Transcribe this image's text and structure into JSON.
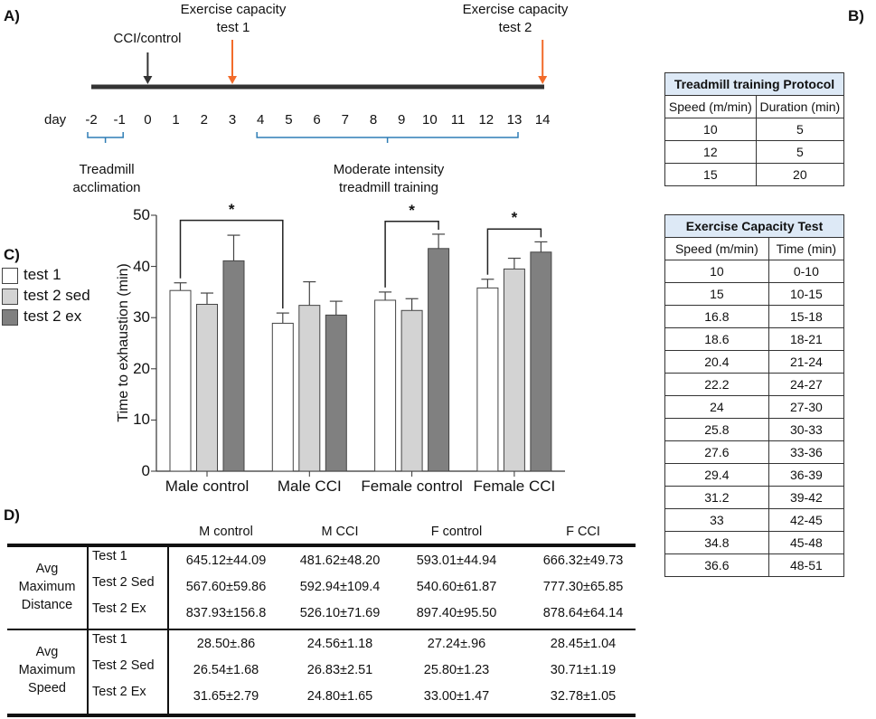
{
  "panels": {
    "a": "A)",
    "b": "B)",
    "c": "C)",
    "d": "D)"
  },
  "timeline": {
    "day_label": "day",
    "days": [
      "-2",
      "-1",
      "0",
      "1",
      "2",
      "3",
      "4",
      "5",
      "6",
      "7",
      "8",
      "9",
      "10",
      "11",
      "12",
      "13",
      "14"
    ],
    "cci_label": "CCI/control",
    "test1_label": [
      "Exercise capacity",
      "test 1"
    ],
    "test2_label": [
      "Exercise capacity",
      "test 2"
    ],
    "acclimation_label": [
      "Treadmill",
      "acclimation"
    ],
    "training_label": [
      "Moderate intensity",
      "treadmill training"
    ],
    "arrow_color": "#f26b2a"
  },
  "protocol_table": {
    "title": "Treadmill training Protocol",
    "headers": [
      "Speed (m/min)",
      "Duration (min)"
    ],
    "rows": [
      [
        "10",
        "5"
      ],
      [
        "12",
        "5"
      ],
      [
        "15",
        "20"
      ]
    ]
  },
  "capacity_table": {
    "title": "Exercise Capacity Test",
    "headers": [
      "Speed (m/min)",
      "Time (min)"
    ],
    "rows": [
      [
        "10",
        "0-10"
      ],
      [
        "15",
        "10-15"
      ],
      [
        "16.8",
        "15-18"
      ],
      [
        "18.6",
        "18-21"
      ],
      [
        "20.4",
        "21-24"
      ],
      [
        "22.2",
        "24-27"
      ],
      [
        "24",
        "27-30"
      ],
      [
        "25.8",
        "30-33"
      ],
      [
        "27.6",
        "33-36"
      ],
      [
        "29.4",
        "36-39"
      ],
      [
        "31.2",
        "39-42"
      ],
      [
        "33",
        "42-45"
      ],
      [
        "34.8",
        "45-48"
      ],
      [
        "36.6",
        "48-51"
      ]
    ]
  },
  "chart_data": {
    "type": "bar",
    "ylabel": "Time to exhaustion  (min)",
    "xlabel": "",
    "ylim": [
      0,
      50
    ],
    "yticks": [
      "0",
      "10",
      "20",
      "30",
      "40",
      "50"
    ],
    "categories": [
      "Male control",
      "Male CCI",
      "Female control",
      "Female CCI"
    ],
    "legend_position": "left",
    "series": [
      {
        "name": "test 1",
        "color": "#ffffff",
        "values": [
          35.3,
          28.9,
          33.4,
          35.8
        ],
        "errors": [
          1.5,
          2.0,
          1.6,
          1.7
        ]
      },
      {
        "name": "test 2 sed",
        "color": "#d3d3d3",
        "values": [
          32.6,
          32.4,
          31.4,
          39.5
        ],
        "errors": [
          2.2,
          4.6,
          2.3,
          2.1
        ]
      },
      {
        "name": "test 2 ex",
        "color": "#808080",
        "values": [
          41.1,
          30.5,
          43.5,
          42.8
        ],
        "errors": [
          5.0,
          2.7,
          2.8,
          2.0
        ]
      }
    ],
    "significance": [
      {
        "from": [
          0,
          0
        ],
        "to": [
          1,
          0
        ],
        "label": "*"
      },
      {
        "from": [
          2,
          0
        ],
        "to": [
          2,
          2
        ],
        "label": "*"
      },
      {
        "from": [
          3,
          0
        ],
        "to": [
          3,
          2
        ],
        "label": "*"
      }
    ]
  },
  "summary_table": {
    "columns": [
      "M control",
      "M CCI",
      "F control",
      "F CCI"
    ],
    "groups": [
      {
        "label": [
          "Avg",
          "Maximum",
          "Distance"
        ],
        "rows": [
          {
            "name": "Test 1",
            "values": [
              "645.12±44.09",
              "481.62±48.20",
              "593.01±44.94",
              "666.32±49.73"
            ]
          },
          {
            "name": "Test 2 Sed",
            "values": [
              "567.60±59.86",
              "592.94±109.4",
              "540.60±61.87",
              "777.30±65.85"
            ]
          },
          {
            "name": "Test 2 Ex",
            "values": [
              "837.93±156.8",
              "526.10±71.69",
              "897.40±95.50",
              "878.64±64.14"
            ]
          }
        ]
      },
      {
        "label": [
          "Avg",
          "Maximum",
          "Speed"
        ],
        "rows": [
          {
            "name": "Test 1",
            "values": [
              "28.50±.86",
              "24.56±1.18",
              "27.24±.96",
              "28.45±1.04"
            ]
          },
          {
            "name": "Test 2 Sed",
            "values": [
              "26.54±1.68",
              "26.83±2.51",
              "25.80±1.23",
              "30.71±1.19"
            ]
          },
          {
            "name": "Test 2 Ex",
            "values": [
              "31.65±2.79",
              "24.80±1.65",
              "33.00±1.47",
              "32.78±1.05"
            ]
          }
        ]
      }
    ]
  }
}
